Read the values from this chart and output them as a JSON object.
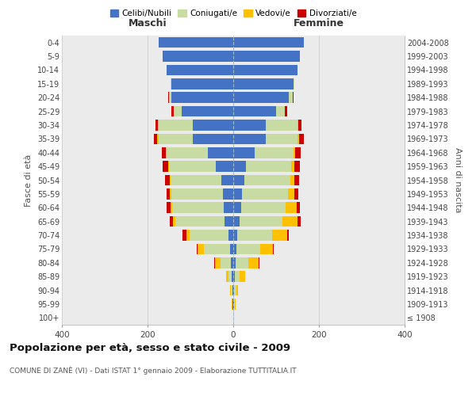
{
  "age_groups": [
    "100+",
    "95-99",
    "90-94",
    "85-89",
    "80-84",
    "75-79",
    "70-74",
    "65-69",
    "60-64",
    "55-59",
    "50-54",
    "45-49",
    "40-44",
    "35-39",
    "30-34",
    "25-29",
    "20-24",
    "15-19",
    "10-14",
    "5-9",
    "0-4"
  ],
  "birth_years": [
    "≤ 1908",
    "1909-1913",
    "1914-1918",
    "1919-1923",
    "1924-1928",
    "1929-1933",
    "1934-1938",
    "1939-1943",
    "1944-1948",
    "1949-1953",
    "1954-1958",
    "1959-1963",
    "1964-1968",
    "1969-1973",
    "1974-1978",
    "1979-1983",
    "1984-1988",
    "1989-1993",
    "1994-1998",
    "1999-2003",
    "2004-2008"
  ],
  "maschi": {
    "celibi": [
      0,
      1,
      2,
      3,
      5,
      8,
      12,
      20,
      22,
      25,
      28,
      40,
      60,
      95,
      95,
      120,
      145,
      145,
      155,
      165,
      175
    ],
    "coniugati": [
      0,
      1,
      3,
      8,
      25,
      60,
      90,
      115,
      120,
      120,
      118,
      110,
      95,
      80,
      80,
      18,
      5,
      2,
      0,
      0,
      0
    ],
    "vedovi": [
      0,
      1,
      2,
      5,
      12,
      15,
      8,
      5,
      5,
      3,
      3,
      2,
      2,
      2,
      1,
      1,
      0,
      0,
      0,
      0,
      0
    ],
    "divorziati": [
      0,
      0,
      0,
      0,
      2,
      2,
      8,
      8,
      8,
      8,
      10,
      12,
      10,
      8,
      5,
      5,
      2,
      0,
      0,
      0,
      0
    ]
  },
  "femmine": {
    "nubili": [
      0,
      1,
      2,
      3,
      5,
      8,
      10,
      15,
      18,
      20,
      25,
      30,
      50,
      75,
      75,
      100,
      130,
      140,
      150,
      155,
      165
    ],
    "coniugate": [
      0,
      2,
      5,
      12,
      30,
      55,
      80,
      100,
      105,
      108,
      108,
      105,
      90,
      75,
      75,
      20,
      8,
      2,
      0,
      0,
      0
    ],
    "vedove": [
      0,
      2,
      5,
      12,
      25,
      30,
      35,
      35,
      25,
      15,
      10,
      8,
      5,
      3,
      2,
      1,
      0,
      0,
      0,
      0,
      0
    ],
    "divorziate": [
      0,
      0,
      0,
      0,
      2,
      2,
      5,
      8,
      8,
      8,
      10,
      12,
      12,
      12,
      8,
      5,
      2,
      0,
      0,
      0,
      0
    ]
  },
  "colors": {
    "celibi": "#4472c4",
    "coniugati": "#c8dba2",
    "vedovi": "#ffc000",
    "divorziati": "#cc0000"
  },
  "legend_labels": [
    "Celibi/Nubili",
    "Coniugati/e",
    "Vedovi/e",
    "Divorziati/e"
  ],
  "title": "Popolazione per età, sesso e stato civile - 2009",
  "subtitle": "COMUNE DI ZANÈ (VI) - Dati ISTAT 1° gennaio 2009 - Elaborazione TUTTITALIA.IT",
  "ylabel_left": "Fasce di età",
  "ylabel_right": "Anni di nascita",
  "xlabel_left": "Maschi",
  "xlabel_right": "Femmine",
  "xlim": 400,
  "bg_plot": "#ebebeb",
  "bg_fig": "#ffffff"
}
